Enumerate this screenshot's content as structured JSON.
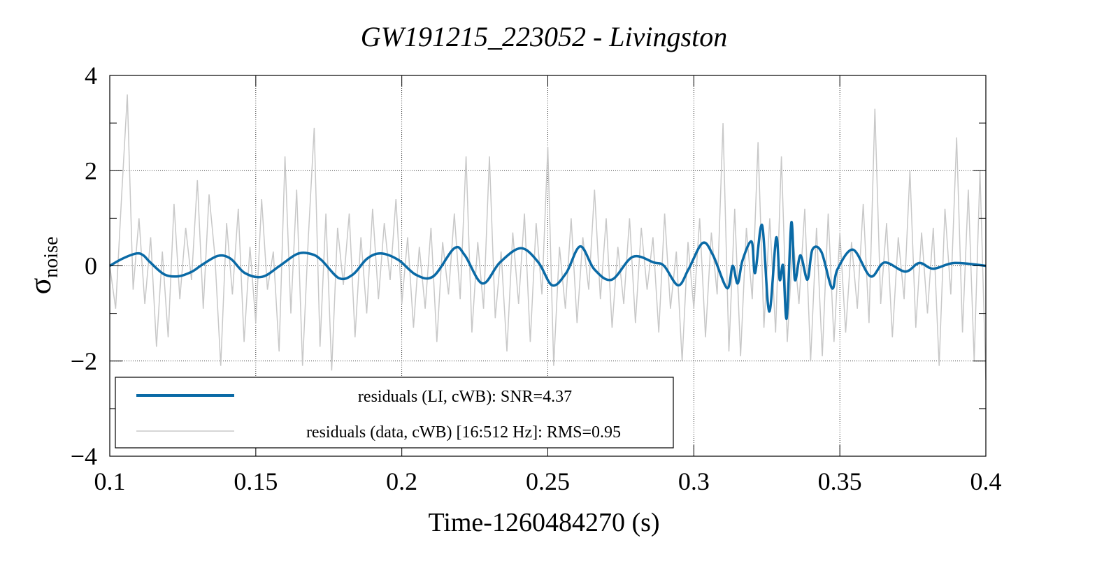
{
  "chart_data": {
    "type": "line",
    "title": "GW191215_223052 - Livingston",
    "xlabel": "Time-1260484270 (s)",
    "ylabel_main": "σ",
    "ylabel_sub": "noise",
    "xlim": [
      0.1,
      0.4
    ],
    "ylim": [
      -4,
      4
    ],
    "xticks": [
      0.1,
      0.15,
      0.2,
      0.25,
      0.3,
      0.35,
      0.4
    ],
    "xtick_labels": [
      "0.1",
      "0.15",
      "0.2",
      "0.25",
      "0.3",
      "0.35",
      "0.4"
    ],
    "yticks": [
      -4,
      -2,
      0,
      2,
      4
    ],
    "ytick_labels": [
      "−4",
      "−2",
      "0",
      "2",
      "4"
    ],
    "grid": true,
    "legend_position": "bottom-left",
    "series": [
      {
        "name": "residuals (data, cWB) [16:512 Hz]: RMS=0.95",
        "color": "#c8c8c8",
        "x_start": 0.1,
        "x_step": 0.002,
        "y": [
          0.0,
          -0.9,
          1.4,
          3.6,
          -0.5,
          1.0,
          -0.8,
          0.6,
          -1.7,
          0.3,
          -1.5,
          1.3,
          -0.7,
          0.8,
          -0.3,
          1.8,
          -0.9,
          1.5,
          0.2,
          -2.1,
          0.9,
          -0.6,
          1.2,
          -1.6,
          0.4,
          -1.2,
          1.4,
          -0.5,
          0.3,
          -1.8,
          2.3,
          -1.0,
          1.6,
          -2.1,
          0.6,
          2.9,
          -1.7,
          1.1,
          -2.2,
          0.8,
          -0.4,
          1.1,
          -1.5,
          0.6,
          -1.0,
          1.2,
          -0.7,
          0.9,
          -0.3,
          1.4,
          -0.8,
          0.6,
          -1.3,
          0.4,
          -0.9,
          0.8,
          -1.6,
          0.5,
          -0.6,
          1.1,
          -0.7,
          2.3,
          -1.4,
          0.5,
          -0.9,
          2.3,
          -1.1,
          0.3,
          -1.8,
          0.7,
          -0.8,
          1.1,
          -1.6,
          0.9,
          -0.6,
          2.5,
          -2.1,
          0.4,
          -0.9,
          1.0,
          -1.2,
          0.6,
          -0.5,
          1.6,
          -0.7,
          1.0,
          -1.3,
          0.4,
          -0.8,
          1.0,
          -1.2,
          0.8,
          -0.5,
          0.6,
          -1.4,
          1.1,
          -0.9,
          0.3,
          -2.0,
          0.5,
          -0.9,
          1.0,
          -1.5,
          0.7,
          -0.6,
          3.0,
          -1.8,
          1.2,
          -1.9,
          0.8,
          -0.7,
          2.6,
          -1.3,
          1.0,
          -1.4,
          2.3,
          -1.6,
          0.6,
          -0.8,
          1.2,
          -2.0,
          0.8,
          -1.9,
          1.1,
          -1.6,
          0.7,
          -1.4,
          0.5,
          -0.9,
          1.3,
          -1.2,
          3.3,
          -0.8,
          0.9,
          -1.5,
          0.6,
          -0.7,
          2.0,
          -1.3,
          0.7,
          -1.0,
          0.8,
          -2.1,
          1.2,
          -0.6,
          2.7,
          -1.4,
          1.6,
          -2.0,
          2.0,
          -2.4
        ]
      },
      {
        "name": "residuals (LI, cWB): SNR=4.37",
        "color": "#0a6aa6",
        "x": [
          0.1,
          0.1043,
          0.1091,
          0.1115,
          0.1139,
          0.1187,
          0.1235,
          0.1282,
          0.1318,
          0.1371,
          0.1414,
          0.1462,
          0.1522,
          0.1582,
          0.1642,
          0.1689,
          0.1725,
          0.1785,
          0.1833,
          0.1881,
          0.1929,
          0.1989,
          0.2049,
          0.2108,
          0.218,
          0.2216,
          0.2276,
          0.2336,
          0.2408,
          0.2468,
          0.2515,
          0.2563,
          0.2611,
          0.2659,
          0.2719,
          0.2791,
          0.2863,
          0.2898,
          0.2946,
          0.2982,
          0.303,
          0.3066,
          0.3114,
          0.3133,
          0.315,
          0.3167,
          0.3198,
          0.321,
          0.3234,
          0.3258,
          0.3282,
          0.3294,
          0.3306,
          0.3318,
          0.3334,
          0.3346,
          0.3365,
          0.3389,
          0.3406,
          0.3437,
          0.3473,
          0.3492,
          0.3545,
          0.3605,
          0.3653,
          0.3724,
          0.3772,
          0.382,
          0.3892,
          0.4
        ],
        "y": [
          0,
          0.15,
          0.26,
          0.22,
          0.07,
          -0.18,
          -0.22,
          -0.12,
          0.03,
          0.21,
          0.15,
          -0.15,
          -0.23,
          0,
          0.25,
          0.25,
          0.12,
          -0.26,
          -0.18,
          0.15,
          0.26,
          0.12,
          -0.19,
          -0.22,
          0.37,
          0.22,
          -0.37,
          0.07,
          0.37,
          0.07,
          -0.41,
          -0.15,
          0.41,
          -0.07,
          -0.29,
          0.19,
          0.07,
          0,
          -0.41,
          -0.07,
          0.48,
          0.22,
          -0.47,
          0,
          -0.37,
          0.12,
          0.51,
          -0.15,
          0.85,
          -0.96,
          0.59,
          -0.29,
          0,
          -1.1,
          0.91,
          -0.29,
          0.22,
          -0.29,
          0.34,
          0.29,
          -0.47,
          -0.07,
          0.34,
          -0.22,
          0.07,
          -0.12,
          0.06,
          -0.06,
          0.06,
          0
        ]
      }
    ],
    "legend": [
      {
        "label": "residuals (LI, cWB): SNR=4.37",
        "color": "#0a6aa6"
      },
      {
        "label": "residuals (data, cWB) [16:512 Hz]: RMS=0.95",
        "color": "#c8c8c8"
      }
    ]
  }
}
